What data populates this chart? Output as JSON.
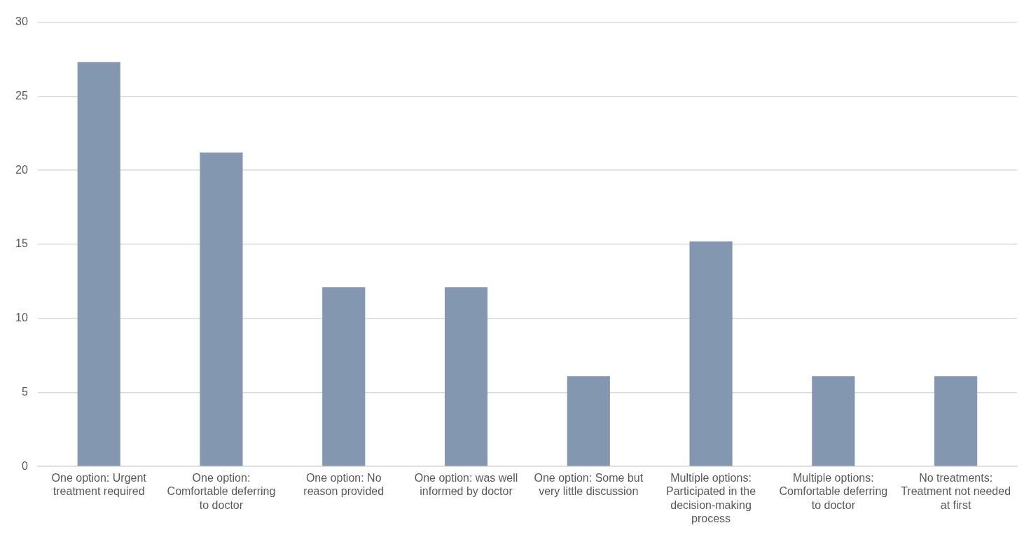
{
  "chart_data": {
    "type": "bar",
    "categories": [
      "One option: Urgent treatment required",
      "One option: Comfortable deferring to doctor",
      "One option: No reason provided",
      "One option: was well informed by doctor",
      "One option: Some but very little discussion",
      "Multiple options: Participated in the decision-making process",
      "Multiple options: Comfortable deferring to doctor",
      "No treatments: Treatment not needed at first"
    ],
    "values": [
      27.3,
      21.2,
      12.1,
      12.1,
      6.1,
      15.2,
      6.1,
      6.1
    ],
    "color": "#8497b0",
    "ylim": [
      0,
      30
    ],
    "yticks": [
      0,
      5,
      10,
      15,
      20,
      25,
      30
    ],
    "grid": "y",
    "legend": false
  }
}
